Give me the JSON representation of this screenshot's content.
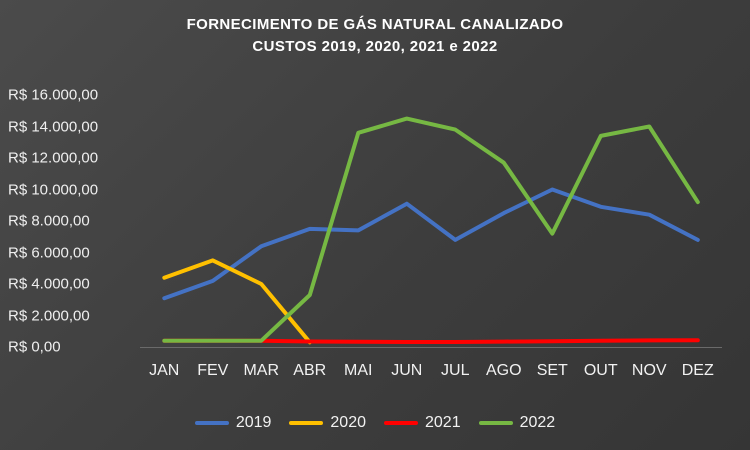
{
  "chart_data": {
    "type": "line",
    "title": "FORNECIMENTO DE GÁS NATURAL CANALIZADO",
    "subtitle": "CUSTOS 2019, 2020, 2021 e 2022",
    "categories": [
      "JAN",
      "FEV",
      "MAR",
      "ABR",
      "MAI",
      "JUN",
      "JUL",
      "AGO",
      "SET",
      "OUT",
      "NOV",
      "DEZ"
    ],
    "y_ticks": [
      "R$ 16.000,00",
      "R$ 14.000,00",
      "R$ 12.000,00",
      "R$ 10.000,00",
      "R$ 8.000,00",
      "R$ 6.000,00",
      "R$ 4.000,00",
      "R$ 2.000,00",
      "R$ 0,00"
    ],
    "ylim": [
      0,
      16000
    ],
    "grid": false,
    "legend_position": "bottom",
    "series": [
      {
        "name": "2019",
        "color": "#4472C4",
        "values": [
          3100,
          4200,
          6400,
          7500,
          7400,
          9100,
          6800,
          8500,
          10000,
          8900,
          8400,
          6800
        ]
      },
      {
        "name": "2020",
        "color": "#FFC000",
        "values": [
          4400,
          5500,
          4000,
          300,
          null,
          null,
          null,
          null,
          null,
          null,
          null,
          null
        ]
      },
      {
        "name": "2021",
        "color": "#FF0000",
        "values": [
          400,
          400,
          400,
          350,
          330,
          320,
          320,
          340,
          370,
          400,
          420,
          430
        ]
      },
      {
        "name": "2022",
        "color": "#76B843",
        "values": [
          400,
          400,
          400,
          3300,
          13600,
          14500,
          13800,
          11700,
          7200,
          13400,
          14000,
          9200
        ]
      }
    ]
  }
}
